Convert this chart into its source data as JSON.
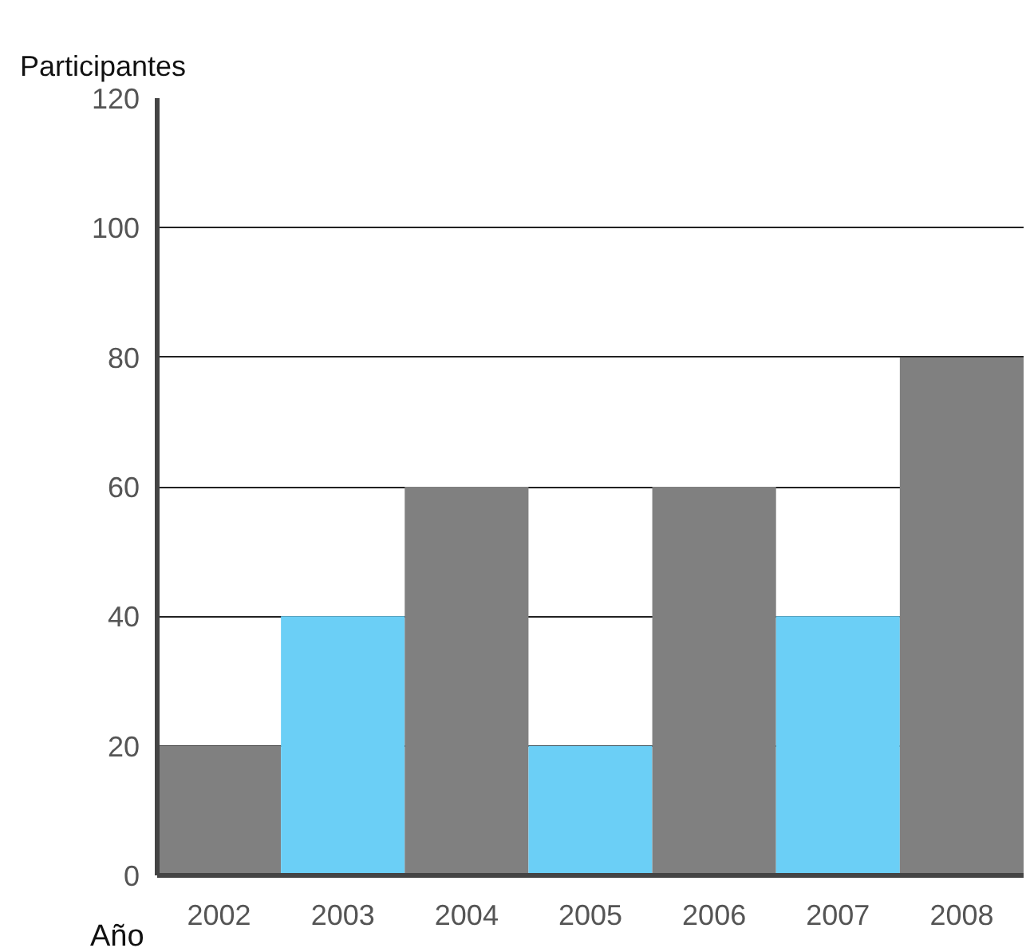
{
  "chart_data": {
    "type": "bar",
    "ylabel": "Participantes",
    "xlabel": "Año",
    "categories": [
      "2002",
      "2003",
      "2004",
      "2005",
      "2006",
      "2007",
      "2008"
    ],
    "values": [
      20,
      40,
      60,
      20,
      60,
      40,
      80
    ],
    "colors": [
      "#808080",
      "#6bcff6",
      "#808080",
      "#6bcff6",
      "#808080",
      "#6bcff6",
      "#808080"
    ],
    "ylim": [
      0,
      120
    ],
    "yticks": [
      0,
      20,
      40,
      60,
      80,
      100,
      120
    ],
    "grid": "y"
  }
}
